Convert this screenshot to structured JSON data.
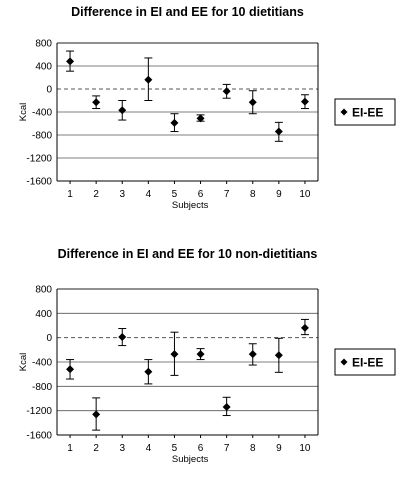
{
  "chart_data": [
    {
      "type": "scatter",
      "title": "Difference in EI and EE for 10 dietitians",
      "xlabel": "Subjects",
      "ylabel": "Kcal",
      "categories": [
        "1",
        "2",
        "3",
        "4",
        "5",
        "6",
        "7",
        "8",
        "9",
        "10"
      ],
      "ylim": [
        -1600,
        800
      ],
      "yticks": [
        "800",
        "400",
        "0",
        "-400",
        "-800",
        "-1200",
        "-1600"
      ],
      "grid": true,
      "zero_line": "dashed",
      "legend_position": "right",
      "series": [
        {
          "name": "EI-EE",
          "marker": "diamond",
          "values": [
            480,
            -230,
            -370,
            160,
            -590,
            -510,
            -40,
            -230,
            -740,
            -220
          ],
          "err_low": [
            310,
            -340,
            -540,
            -200,
            -740,
            -560,
            -160,
            -430,
            -910,
            -340
          ],
          "err_high": [
            660,
            -120,
            -200,
            540,
            -430,
            -450,
            80,
            -30,
            -580,
            -100
          ]
        }
      ]
    },
    {
      "type": "scatter",
      "title": "Difference in EI and EE for 10 non-dietitians",
      "xlabel": "Subjects",
      "ylabel": "Kcal",
      "categories": [
        "1",
        "2",
        "3",
        "4",
        "5",
        "6",
        "7",
        "8",
        "9",
        "10"
      ],
      "ylim": [
        -1600,
        800
      ],
      "yticks": [
        "800",
        "400",
        "0",
        "-400",
        "-800",
        "-1200",
        "-1600"
      ],
      "grid": true,
      "zero_line": "dashed",
      "legend_position": "right",
      "series": [
        {
          "name": "EI-EE",
          "marker": "diamond",
          "values": [
            -520,
            -1260,
            10,
            -560,
            -270,
            -270,
            -1140,
            -270,
            -290,
            160
          ],
          "err_low": [
            -680,
            -1520,
            -130,
            -760,
            -620,
            -360,
            -1280,
            -450,
            -570,
            50
          ],
          "err_high": [
            -360,
            -990,
            150,
            -360,
            90,
            -180,
            -980,
            -100,
            -10,
            300
          ]
        }
      ]
    }
  ]
}
